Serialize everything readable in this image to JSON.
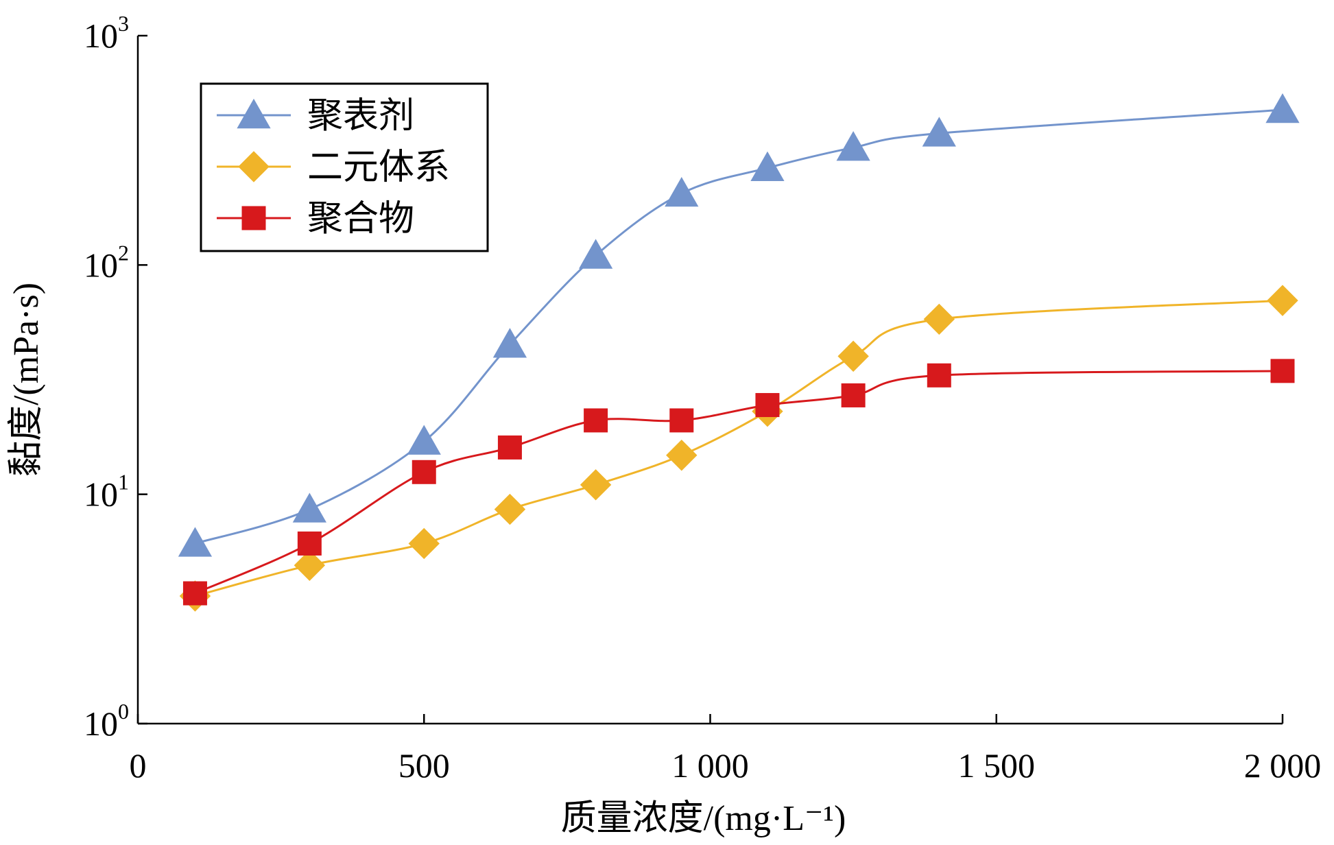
{
  "chart_data": {
    "type": "line",
    "xlabel": "质量浓度/(mg·L⁻¹)",
    "ylabel": "黏度/(mPa·s)",
    "xlim": [
      0,
      2000
    ],
    "ylim": [
      1,
      1000
    ],
    "yscale": "log",
    "x_ticks": [
      {
        "value": 0,
        "label": "0"
      },
      {
        "value": 500,
        "label": "500"
      },
      {
        "value": 1000,
        "label": "1 000"
      },
      {
        "value": 1500,
        "label": "1 500"
      },
      {
        "value": 2000,
        "label": "2 000"
      }
    ],
    "y_ticks": [
      {
        "value": 1,
        "base": "10",
        "exp": "0"
      },
      {
        "value": 10,
        "base": "10",
        "exp": "1"
      },
      {
        "value": 100,
        "base": "10",
        "exp": "2"
      },
      {
        "value": 1000,
        "base": "10",
        "exp": "3"
      }
    ],
    "legend_position": "top-left",
    "grid": false,
    "series": [
      {
        "name": "聚表剂",
        "color": "#7394CC",
        "marker": "triangle",
        "x": [
          100,
          300,
          500,
          650,
          800,
          950,
          1100,
          1250,
          1400,
          2000
        ],
        "y": [
          6.1,
          8.6,
          17,
          45,
          110,
          205,
          265,
          325,
          375,
          475
        ]
      },
      {
        "name": "二元体系",
        "color": "#F0B429",
        "marker": "diamond",
        "x": [
          100,
          300,
          500,
          650,
          800,
          950,
          1100,
          1250,
          1400,
          2000
        ],
        "y": [
          3.6,
          4.9,
          6.1,
          8.6,
          11,
          14.8,
          23,
          40,
          58,
          70
        ]
      },
      {
        "name": "聚合物",
        "color": "#D7191C",
        "marker": "square",
        "x": [
          100,
          300,
          500,
          650,
          800,
          950,
          1100,
          1250,
          1400,
          2000
        ],
        "y": [
          3.7,
          6.1,
          12.5,
          16,
          21,
          21,
          24.5,
          27,
          33,
          34.5
        ]
      }
    ]
  }
}
